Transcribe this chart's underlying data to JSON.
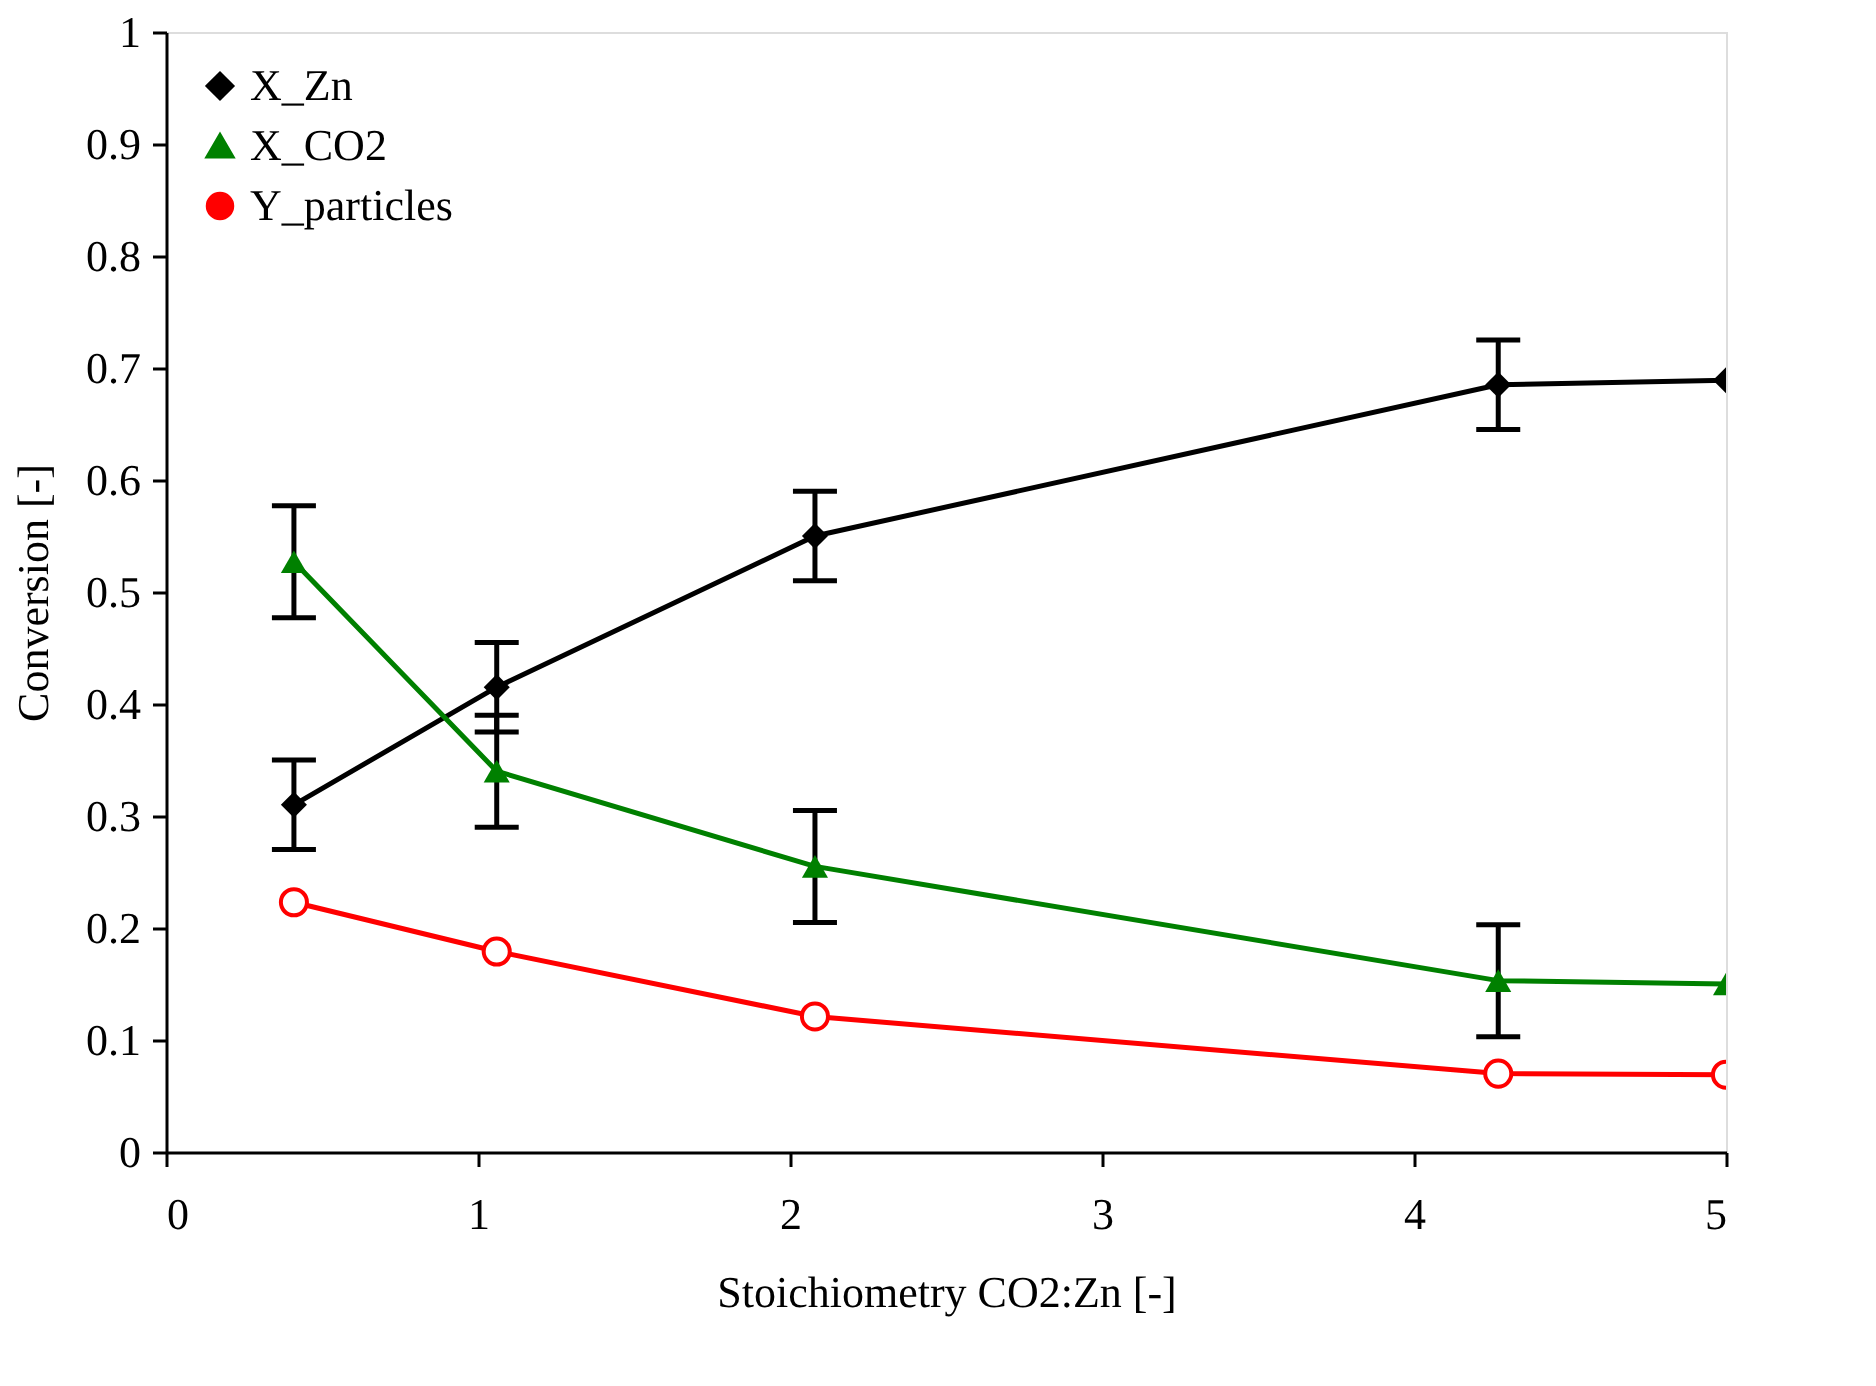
{
  "chart_data": {
    "type": "line",
    "xlabel": "Stoichiometry CO2:Zn [-]",
    "ylabel": "Conversion [-]",
    "xlim": [
      0,
      5
    ],
    "xticks": [
      0,
      1,
      2,
      3,
      4,
      5
    ],
    "ylim": [
      0,
      1
    ],
    "yticks": [
      0,
      0.1,
      0.2,
      0.3,
      0.4,
      0.5,
      0.6,
      0.7,
      0.8,
      0.9,
      1
    ],
    "grid": false,
    "legend": "top left",
    "line_style": "solid",
    "series": [
      {
        "name": "X_Zn",
        "color": "#000000",
        "marker": "diamond",
        "x": [
          0.41,
          1.06,
          2.08,
          4.27,
          5
        ],
        "values": [
          0.31,
          0.415,
          0.55,
          0.685,
          0.689
        ],
        "errors": [
          0.04,
          0.04,
          0.04,
          0.04,
          null
        ]
      },
      {
        "name": "X_CO2",
        "color": "#008000",
        "marker": "triangle",
        "x": [
          0.41,
          1.06,
          2.08,
          4.27,
          5
        ],
        "values": [
          0.527,
          0.34,
          0.255,
          0.153,
          0.15
        ],
        "errors": [
          0.05,
          0.05,
          0.05,
          0.05,
          null
        ]
      },
      {
        "name": "Y_particles",
        "color": "#ff0000",
        "marker": "circle",
        "x": [
          0.41,
          1.06,
          2.08,
          4.27,
          5
        ],
        "values": [
          0.223,
          0.179,
          0.121,
          0.07,
          0.069
        ]
      }
    ]
  }
}
